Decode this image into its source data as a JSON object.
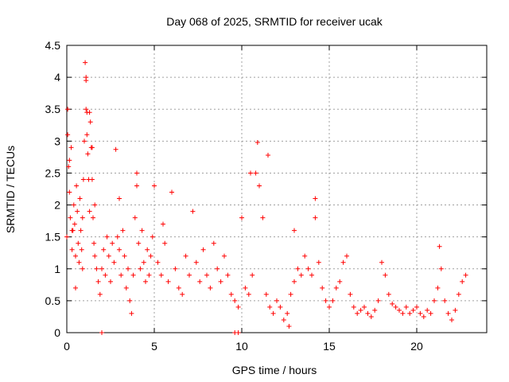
{
  "chart_data": {
    "type": "scatter",
    "title": "Day 068 of 2025, SRMTID for receiver ucak",
    "xlabel": "GPS time / hours",
    "ylabel": "SRMTID / TECUs",
    "xlim": [
      0,
      24
    ],
    "ylim": [
      0,
      4.5
    ],
    "xticks": [
      0,
      5,
      10,
      15,
      20
    ],
    "yticks": [
      0,
      0.5,
      1,
      1.5,
      2,
      2.5,
      3,
      3.5,
      4,
      4.5
    ],
    "grid": true,
    "marker": "+",
    "color": "#ff0000",
    "series": [
      {
        "name": "SRMTID",
        "x": [
          0.0,
          0.05,
          0.1,
          0.15,
          0.2,
          0.25,
          0.3,
          0.35,
          0.4,
          0.45,
          0.5,
          0.55,
          0.6,
          0.65,
          0.7,
          0.75,
          0.8,
          0.85,
          0.9,
          0.95,
          1.0,
          1.05,
          1.1,
          1.1,
          1.15,
          1.2,
          1.25,
          1.3,
          1.35,
          1.4,
          1.45,
          1.5,
          1.55,
          1.6,
          1.7,
          1.8,
          1.9,
          2.0,
          2.1,
          2.2,
          2.3,
          2.4,
          2.5,
          2.6,
          2.7,
          2.8,
          2.9,
          3.0,
          3.1,
          3.2,
          3.3,
          3.4,
          3.5,
          3.6,
          3.7,
          3.8,
          3.9,
          4.0,
          4.1,
          4.2,
          4.3,
          4.4,
          4.5,
          4.6,
          4.7,
          4.8,
          4.9,
          5.0,
          5.2,
          5.4,
          5.6,
          5.8,
          6.0,
          6.2,
          6.4,
          6.6,
          6.8,
          7.0,
          7.2,
          7.4,
          7.6,
          7.8,
          8.0,
          8.2,
          8.4,
          8.6,
          8.8,
          9.0,
          9.2,
          9.4,
          9.6,
          9.8,
          10.0,
          10.2,
          10.4,
          10.6,
          10.8,
          11.0,
          11.2,
          11.4,
          11.6,
          11.8,
          12.0,
          12.2,
          12.4,
          12.6,
          12.8,
          13.0,
          13.2,
          13.4,
          13.6,
          13.8,
          14.0,
          14.2,
          14.4,
          14.6,
          14.8,
          15.0,
          15.2,
          15.4,
          15.6,
          15.8,
          16.0,
          16.2,
          16.4,
          16.6,
          16.8,
          17.0,
          17.2,
          17.4,
          17.6,
          17.8,
          18.0,
          18.2,
          18.4,
          18.6,
          18.8,
          19.0,
          19.2,
          19.4,
          19.6,
          19.8,
          20.0,
          20.2,
          20.4,
          20.6,
          20.8,
          21.0,
          21.2,
          21.4,
          21.6,
          21.8,
          22.0,
          22.2,
          22.4,
          22.6,
          22.8,
          0.05,
          0.15,
          1.1,
          1.15,
          1.3,
          1.45,
          3.0,
          4.0,
          10.5,
          10.9,
          11.5,
          12.7,
          13.0,
          14.2,
          21.3,
          9.6,
          9.8,
          2.0,
          0.5,
          0.3,
          0.9,
          1.6,
          5.5
        ],
        "y": [
          1.5,
          3.5,
          2.6,
          2.2,
          1.8,
          2.9,
          1.3,
          1.6,
          2.0,
          1.7,
          1.2,
          2.3,
          1.9,
          1.4,
          1.1,
          2.1,
          1.6,
          1.3,
          1.8,
          2.4,
          3.0,
          4.23,
          4.0,
          3.95,
          3.45,
          2.8,
          2.4,
          1.9,
          3.3,
          2.9,
          2.4,
          1.8,
          1.4,
          1.2,
          1.0,
          0.8,
          0.6,
          1.0,
          1.3,
          0.9,
          1.5,
          1.2,
          0.8,
          1.4,
          1.1,
          2.87,
          1.5,
          1.3,
          0.9,
          1.6,
          1.2,
          0.7,
          1.0,
          0.5,
          0.3,
          0.9,
          1.8,
          2.5,
          1.4,
          1.0,
          1.6,
          1.1,
          0.8,
          1.3,
          0.9,
          1.2,
          1.5,
          2.3,
          1.1,
          0.9,
          1.4,
          0.8,
          2.2,
          1.0,
          0.7,
          0.6,
          1.2,
          0.9,
          1.9,
          1.1,
          0.8,
          1.3,
          0.9,
          0.7,
          1.4,
          1.0,
          0.8,
          1.2,
          0.9,
          0.6,
          0.5,
          0.4,
          1.8,
          0.7,
          0.6,
          0.9,
          2.5,
          2.3,
          1.8,
          0.6,
          0.4,
          0.3,
          0.5,
          0.4,
          0.2,
          0.3,
          0.6,
          0.8,
          1.0,
          0.9,
          1.2,
          1.0,
          0.9,
          1.8,
          1.1,
          0.7,
          0.5,
          0.4,
          0.5,
          0.7,
          0.8,
          1.1,
          1.2,
          0.6,
          0.4,
          0.3,
          0.35,
          0.4,
          0.3,
          0.25,
          0.35,
          0.5,
          1.1,
          0.9,
          0.6,
          0.45,
          0.4,
          0.35,
          0.3,
          0.4,
          0.3,
          0.35,
          0.4,
          0.3,
          0.25,
          0.35,
          0.3,
          0.5,
          0.7,
          1.0,
          0.5,
          0.3,
          0.2,
          0.35,
          0.6,
          0.8,
          0.9,
          3.1,
          2.7,
          3.5,
          3.1,
          3.45,
          2.9,
          2.1,
          2.3,
          2.5,
          2.98,
          2.78,
          0.1,
          1.6,
          2.1,
          1.35,
          0.0,
          0.0,
          0.0,
          0.7,
          1.6,
          1.0,
          2.0,
          1.7
        ]
      }
    ]
  }
}
